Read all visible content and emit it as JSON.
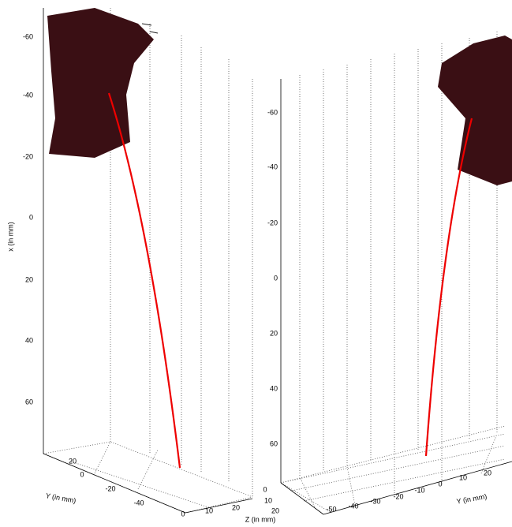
{
  "panels": [
    {
      "x_label": "x (in mm)",
      "x_ticks": [
        "-60",
        "-40",
        "-20",
        "0",
        "20",
        "40",
        "60"
      ],
      "y_label": "Y (in mm)",
      "y_ticks": [
        "20",
        "0",
        "-20",
        "-40"
      ],
      "z_label": "Z (in mm)",
      "z_ticks": [
        "0",
        "10",
        "20"
      ]
    },
    {
      "x_ticks": [
        "-60",
        "-40",
        "-20",
        "0",
        "20",
        "40",
        "60"
      ],
      "y_label": "Y (in mm)",
      "y_ticks": [
        "-50",
        "-40",
        "-30",
        "-20",
        "-10",
        "0",
        "10",
        "20"
      ],
      "z_ticks": [
        "0",
        "10",
        "20"
      ]
    }
  ]
}
